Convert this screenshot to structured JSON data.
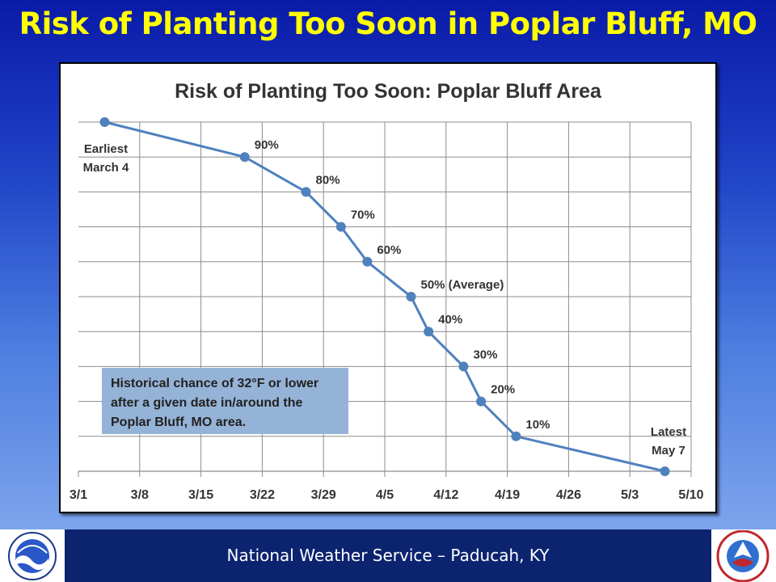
{
  "slide": {
    "title": "Risk of Planting Too Soon in Poplar Bluff, MO",
    "footer_text": "National Weather Service – Paducah, KY",
    "logos": {
      "left": "noaa-logo",
      "right": "nws-logo"
    }
  },
  "chart_data": {
    "type": "line",
    "title": "Risk of Planting Too Soon: Poplar Bluff Area",
    "xlabel": "",
    "ylabel": "",
    "x_ticks": [
      "3/1",
      "3/8",
      "3/15",
      "3/22",
      "3/29",
      "4/5",
      "4/12",
      "4/19",
      "4/26",
      "5/3",
      "5/10"
    ],
    "xlim": [
      "3/1",
      "5/10"
    ],
    "ylim": [
      0,
      100
    ],
    "grid": true,
    "line_color": "#4f81bd",
    "series": [
      {
        "x": [
          "3/4",
          "3/20",
          "3/27",
          "3/31",
          "4/3",
          "4/8",
          "4/10",
          "4/14",
          "4/16",
          "4/20",
          "5/7"
        ],
        "values": [
          100,
          90,
          80,
          70,
          60,
          50,
          40,
          30,
          20,
          10,
          0
        ]
      }
    ],
    "data_labels": [
      "90%",
      "80%",
      "70%",
      "60%",
      "50% (Average)",
      "40%",
      "30%",
      "20%",
      "10%"
    ],
    "annotations": {
      "earliest_line1": "Earliest",
      "earliest_line2": "March 4",
      "latest_line1": "Latest",
      "latest_line2": "May 7",
      "note_line1": "Historical chance of 32°F or lower",
      "note_line2": "after a given date in/around the",
      "note_line3": "Poplar Bluff, MO area."
    },
    "note_box_color": "#95b3d7"
  }
}
